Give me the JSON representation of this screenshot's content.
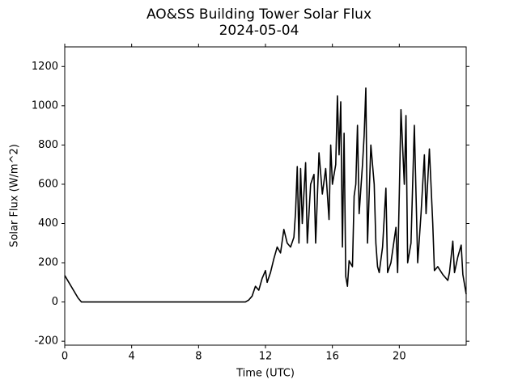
{
  "chart_data": {
    "type": "line",
    "title": "AO&SS Building Tower Solar Flux",
    "subtitle": "2024-05-04",
    "x_label": "Time (UTC)",
    "y_label": "Solar Flux (W/m^2)",
    "color": "#000000",
    "xlim": [
      0,
      24
    ],
    "ylim": [
      -220,
      1300
    ],
    "xticks": [
      0,
      4,
      8,
      12,
      16,
      20
    ],
    "yticks": [
      -200,
      0,
      200,
      400,
      600,
      800,
      1000,
      1200
    ],
    "x": [
      0,
      0.8,
      1.0,
      10.8,
      11.0,
      11.2,
      11.4,
      11.6,
      11.8,
      12.0,
      12.1,
      12.3,
      12.5,
      12.7,
      12.9,
      13.1,
      13.3,
      13.5,
      13.7,
      13.8,
      13.9,
      14.0,
      14.1,
      14.2,
      14.4,
      14.5,
      14.7,
      14.9,
      15.0,
      15.2,
      15.4,
      15.6,
      15.8,
      15.9,
      16.0,
      16.2,
      16.3,
      16.4,
      16.5,
      16.6,
      16.7,
      16.8,
      16.9,
      17.0,
      17.2,
      17.3,
      17.4,
      17.5,
      17.6,
      17.8,
      17.9,
      18.0,
      18.1,
      18.3,
      18.5,
      18.6,
      18.7,
      18.8,
      19.0,
      19.2,
      19.3,
      19.5,
      19.8,
      19.9,
      20.0,
      20.1,
      20.3,
      20.4,
      20.5,
      20.7,
      20.9,
      21.1,
      21.3,
      21.5,
      21.6,
      21.8,
      22.0,
      22.1,
      22.3,
      22.6,
      22.9,
      23.0,
      23.2,
      23.3,
      23.5,
      23.7,
      23.8,
      24.0
    ],
    "values": [
      135,
      20,
      0,
      0,
      10,
      30,
      80,
      60,
      120,
      160,
      100,
      150,
      220,
      280,
      250,
      370,
      300,
      280,
      330,
      460,
      690,
      300,
      680,
      400,
      710,
      300,
      600,
      650,
      300,
      760,
      550,
      680,
      420,
      800,
      600,
      700,
      1050,
      750,
      1020,
      280,
      860,
      130,
      80,
      210,
      180,
      540,
      600,
      900,
      450,
      700,
      850,
      1090,
      300,
      800,
      600,
      300,
      180,
      150,
      280,
      580,
      150,
      200,
      380,
      150,
      550,
      980,
      600,
      950,
      200,
      300,
      900,
      200,
      450,
      750,
      450,
      780,
      400,
      160,
      180,
      140,
      110,
      150,
      310,
      150,
      230,
      290,
      140,
      40
    ]
  }
}
